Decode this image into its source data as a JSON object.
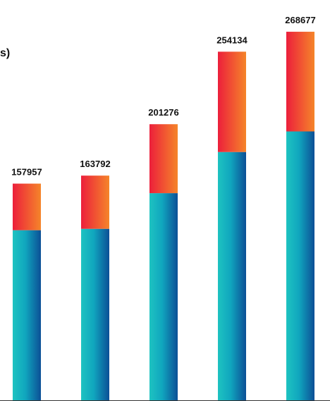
{
  "title_fragment": "s)",
  "chart_data": {
    "type": "bar",
    "stacked": true,
    "categories": [
      "",
      "",
      "",
      "",
      ""
    ],
    "totals": [
      "157957",
      "163792",
      "201276",
      "254134",
      "268677"
    ],
    "series": [
      {
        "values": [
          124000,
          125000,
          151000,
          181000,
          196000
        ],
        "gradient": [
          "#1ec3c1",
          "#0c4f96"
        ]
      },
      {
        "values": [
          33957,
          38792,
          50276,
          73134,
          72677
        ],
        "gradient": [
          "#ec1f3b",
          "#f5852a"
        ]
      }
    ],
    "ylim": [
      0,
      280000
    ],
    "grid": false,
    "legend": "none"
  }
}
